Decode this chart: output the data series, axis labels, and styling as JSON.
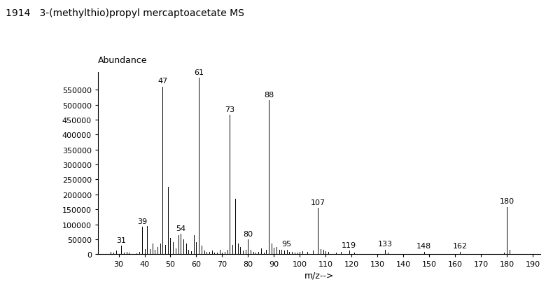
{
  "title_num": "1914",
  "title_name": "3-(methylthio)propyl mercaptoacetate MS",
  "xlabel": "m/z-->",
  "ylabel": "Abundance",
  "xlim": [
    22,
    193
  ],
  "ylim": [
    0,
    610000
  ],
  "xticks": [
    30,
    40,
    50,
    60,
    70,
    80,
    90,
    100,
    110,
    120,
    130,
    140,
    150,
    160,
    170,
    180,
    190
  ],
  "yticks": [
    0,
    50000,
    100000,
    150000,
    200000,
    250000,
    300000,
    350000,
    400000,
    450000,
    500000,
    550000
  ],
  "ytick_labels": [
    "0",
    "50000",
    "100000",
    "150000",
    "200000",
    "250000",
    "300000",
    "350000",
    "400000",
    "450000",
    "500000",
    "550000"
  ],
  "peaks": {
    "27": 8000,
    "28": 5000,
    "29": 12000,
    "31": 28000,
    "32": 5000,
    "33": 8000,
    "34": 5000,
    "37": 3000,
    "38": 8000,
    "39": 92000,
    "40": 18000,
    "41": 95000,
    "42": 18000,
    "43": 35000,
    "44": 15000,
    "45": 25000,
    "46": 35000,
    "47": 560000,
    "48": 30000,
    "49": 225000,
    "50": 55000,
    "51": 40000,
    "52": 20000,
    "53": 65000,
    "54": 68000,
    "55": 50000,
    "56": 35000,
    "57": 15000,
    "58": 10000,
    "59": 65000,
    "60": 40000,
    "61": 590000,
    "62": 28000,
    "63": 12000,
    "64": 8000,
    "65": 8000,
    "66": 12000,
    "67": 5000,
    "68": 5000,
    "69": 15000,
    "70": 5000,
    "71": 8000,
    "72": 15000,
    "73": 465000,
    "74": 30000,
    "75": 185000,
    "76": 35000,
    "77": 25000,
    "78": 12000,
    "79": 15000,
    "80": 50000,
    "81": 15000,
    "82": 8000,
    "83": 5000,
    "84": 8000,
    "85": 20000,
    "86": 5000,
    "87": 15000,
    "88": 515000,
    "89": 35000,
    "90": 22000,
    "91": 25000,
    "92": 15000,
    "93": 15000,
    "94": 12000,
    "95": 15000,
    "96": 8000,
    "97": 8000,
    "98": 5000,
    "99": 5000,
    "100": 8000,
    "101": 10000,
    "103": 8000,
    "105": 12000,
    "107": 155000,
    "108": 18000,
    "109": 15000,
    "110": 10000,
    "111": 8000,
    "114": 5000,
    "116": 8000,
    "119": 12000,
    "121": 5000,
    "133": 15000,
    "134": 5000,
    "148": 8000,
    "162": 8000,
    "179": 5000,
    "180": 158000,
    "181": 15000
  },
  "labels": {
    "31": 28000,
    "39": 92000,
    "47": 560000,
    "54": 68000,
    "61": 590000,
    "73": 465000,
    "80": 50000,
    "88": 515000,
    "95": 15000,
    "107": 155000,
    "119": 12000,
    "133": 15000,
    "148": 8000,
    "162": 8000,
    "180": 158000
  },
  "background_color": "#ffffff",
  "bar_color": "#000000",
  "title_fontsize": 10,
  "axis_label_fontsize": 9,
  "tick_fontsize": 8,
  "peak_label_fontsize": 8
}
